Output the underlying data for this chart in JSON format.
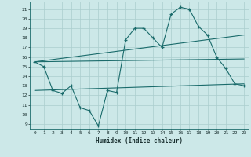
{
  "xlabel": "Humidex (Indice chaleur)",
  "background_color": "#cce8e8",
  "grid_color": "#aacece",
  "line_color": "#1a6b6b",
  "xlim": [
    -0.5,
    23.5
  ],
  "ylim": [
    8.5,
    21.8
  ],
  "yticks": [
    9,
    10,
    11,
    12,
    13,
    14,
    15,
    16,
    17,
    18,
    19,
    20,
    21
  ],
  "xticks": [
    0,
    1,
    2,
    3,
    4,
    5,
    6,
    7,
    8,
    9,
    10,
    11,
    12,
    13,
    14,
    15,
    16,
    17,
    18,
    19,
    20,
    21,
    22,
    23
  ],
  "line1_x": [
    0,
    1,
    2,
    3,
    4,
    5,
    6,
    7,
    8,
    9,
    10,
    11,
    12,
    13,
    14,
    15,
    16,
    17,
    18,
    19,
    20,
    21,
    22,
    23
  ],
  "line1_y": [
    15.5,
    15.0,
    12.5,
    12.2,
    13.0,
    10.7,
    10.4,
    8.8,
    12.5,
    12.3,
    17.8,
    19.0,
    19.0,
    18.0,
    17.0,
    20.5,
    21.2,
    21.0,
    19.2,
    18.3,
    16.0,
    14.8,
    13.2,
    13.0
  ],
  "line2_x": [
    0,
    23
  ],
  "line2_y": [
    15.5,
    18.3
  ],
  "line3_x": [
    0,
    23
  ],
  "line3_y": [
    15.5,
    15.8
  ],
  "line4_x": [
    0,
    23
  ],
  "line4_y": [
    12.5,
    13.2
  ]
}
